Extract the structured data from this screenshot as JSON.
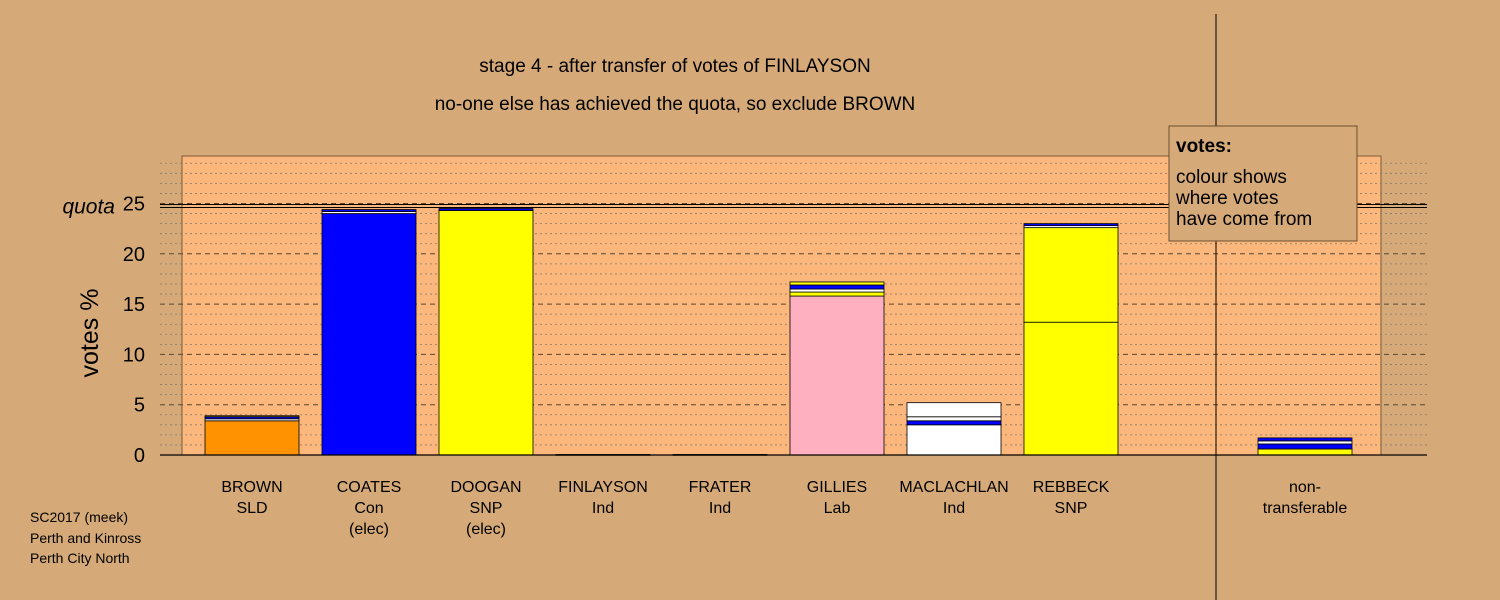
{
  "chart_data": {
    "type": "bar",
    "stacked": true,
    "title": "stage 4 - after transfer of votes of FINLAYSON",
    "subtitle": "no-one else has achieved the quota, so exclude BROWN",
    "ylabel": "votes %",
    "ylim": [
      0,
      29.5
    ],
    "yticks": [
      0,
      5,
      10,
      15,
      20,
      25
    ],
    "quota": 24.7,
    "quota_label": "quota",
    "grid": true,
    "categories": [
      {
        "lines": [
          "BROWN",
          "SLD"
        ]
      },
      {
        "lines": [
          "COATES",
          "Con",
          "(elec)"
        ]
      },
      {
        "lines": [
          "DOOGAN",
          "SNP",
          "(elec)"
        ]
      },
      {
        "lines": [
          "FINLAYSON",
          "Ind"
        ]
      },
      {
        "lines": [
          "FRATER",
          "Ind"
        ]
      },
      {
        "lines": [
          "GILLIES",
          "Lab"
        ]
      },
      {
        "lines": [
          "MACLACHLAN",
          "Ind"
        ]
      },
      {
        "lines": [
          "REBBECK",
          "SNP"
        ]
      },
      {
        "lines": [
          "",
          ""
        ]
      },
      {
        "lines": [
          "non-",
          "transferable"
        ]
      }
    ],
    "bars": [
      [
        {
          "value": 3.4,
          "color": "#FF9200"
        },
        {
          "value": 0.2,
          "color": "#FFFFFF"
        },
        {
          "value": 0.2,
          "color": "#0000FF"
        },
        {
          "value": 0.1,
          "color": "#FFFF00"
        }
      ],
      [
        {
          "value": 24.0,
          "color": "#0000FF"
        },
        {
          "value": 0.2,
          "color": "#FFFFFF"
        },
        {
          "value": 0.2,
          "color": "#0000FF"
        }
      ],
      [
        {
          "value": 24.3,
          "color": "#FFFF00"
        },
        {
          "value": 0.2,
          "color": "#0000FF"
        }
      ],
      [
        {
          "value": 0.05,
          "color": "#FFFFFF"
        }
      ],
      [
        {
          "value": 0.05,
          "color": "#FFFFFF"
        }
      ],
      [
        {
          "value": 15.8,
          "color": "#FFB0C0"
        },
        {
          "value": 0.4,
          "color": "#FFFF00"
        },
        {
          "value": 0.3,
          "color": "#FFFFFF"
        },
        {
          "value": 0.4,
          "color": "#0000FF"
        },
        {
          "value": 0.3,
          "color": "#FFFF00"
        }
      ],
      [
        {
          "value": 3.0,
          "color": "#FFFFFF"
        },
        {
          "value": 0.4,
          "color": "#0000FF"
        },
        {
          "value": 0.4,
          "color": "#FFFFFF"
        },
        {
          "value": 1.4,
          "color": "#FFFFFF"
        }
      ],
      [
        {
          "value": 13.2,
          "color": "#FFFF00"
        },
        {
          "value": 9.4,
          "color": "#FFFF00"
        },
        {
          "value": 0.2,
          "color": "#FFFFFF"
        },
        {
          "value": 0.2,
          "color": "#0000FF"
        }
      ],
      [],
      [
        {
          "value": 0.6,
          "color": "#FFFF00"
        },
        {
          "value": 0.5,
          "color": "#0000FF"
        },
        {
          "value": 0.3,
          "color": "#FFFFFF"
        },
        {
          "value": 0.3,
          "color": "#0000FF"
        }
      ]
    ],
    "legend": {
      "title": "votes:",
      "lines": [
        "colour shows",
        "where votes",
        "have come from"
      ],
      "position": "top-right"
    }
  },
  "footer": {
    "lines": [
      "SC2017 (meek)",
      "Perth and Kinross",
      "Perth City North"
    ]
  },
  "colors": {
    "background": "#D5AA78",
    "plot_area": "#FBB77C"
  }
}
